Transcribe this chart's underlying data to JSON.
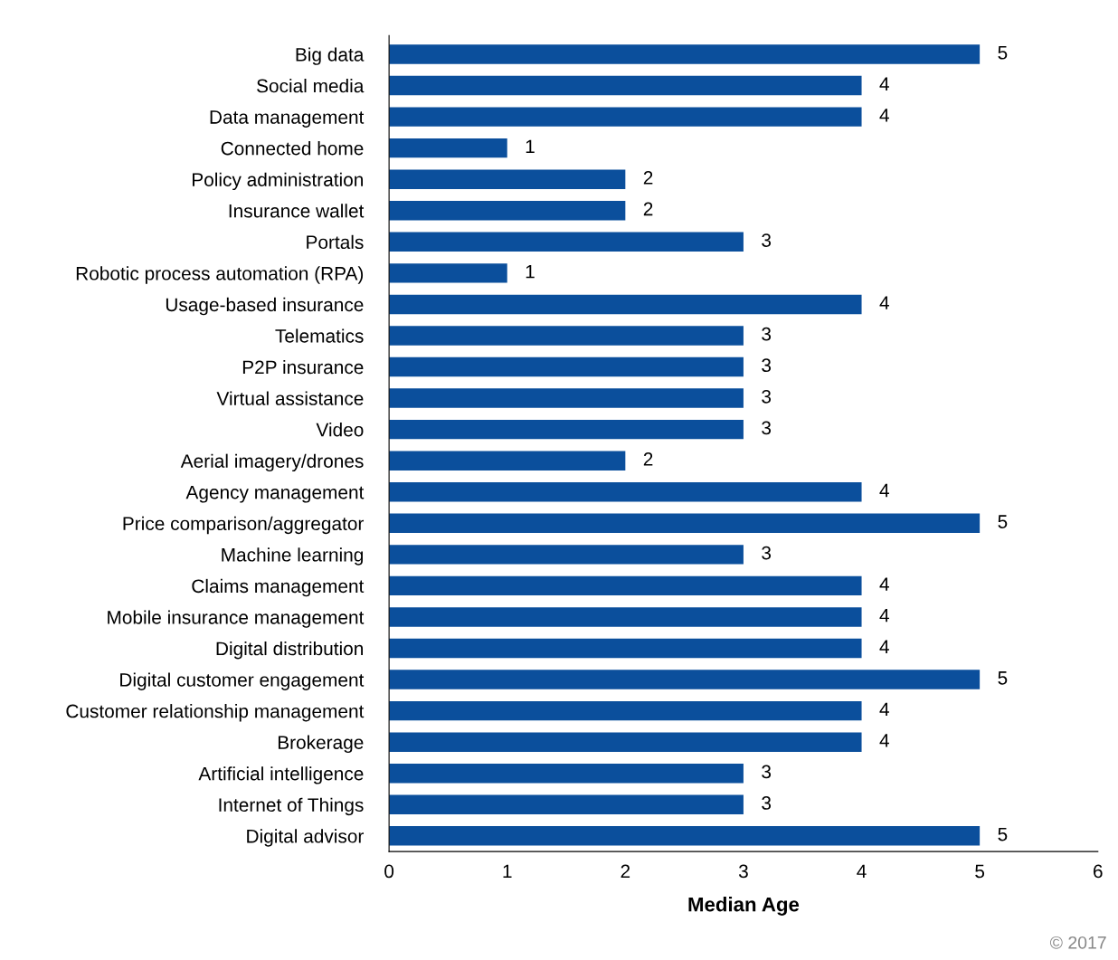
{
  "chart_data": {
    "type": "bar",
    "orientation": "horizontal",
    "xlabel": "Median Age",
    "categories": [
      "Big data",
      "Social media",
      "Data management",
      "Connected home",
      "Policy administration",
      "Insurance wallet",
      "Portals",
      "Robotic process automation (RPA)",
      "Usage-based insurance",
      "Telematics",
      "P2P insurance",
      "Virtual assistance",
      "Video",
      "Aerial imagery/drones",
      "Agency management",
      "Price comparison/aggregator",
      "Machine learning",
      "Claims management",
      "Mobile insurance management",
      "Digital distribution",
      "Digital customer engagement",
      "Customer relationship management",
      "Brokerage",
      "Artificial intelligence",
      "Internet of Things",
      "Digital advisor"
    ],
    "values": [
      5,
      4,
      4,
      1,
      2,
      2,
      3,
      1,
      4,
      3,
      3,
      3,
      3,
      2,
      4,
      5,
      3,
      4,
      4,
      4,
      5,
      4,
      4,
      3,
      3,
      5
    ],
    "color": "#0b4f9c",
    "xlim": [
      0,
      6
    ],
    "xticks": [
      0,
      1,
      2,
      3,
      4,
      5,
      6
    ],
    "data_labels": true,
    "grid": false,
    "annotations": [
      "© 2017"
    ]
  }
}
